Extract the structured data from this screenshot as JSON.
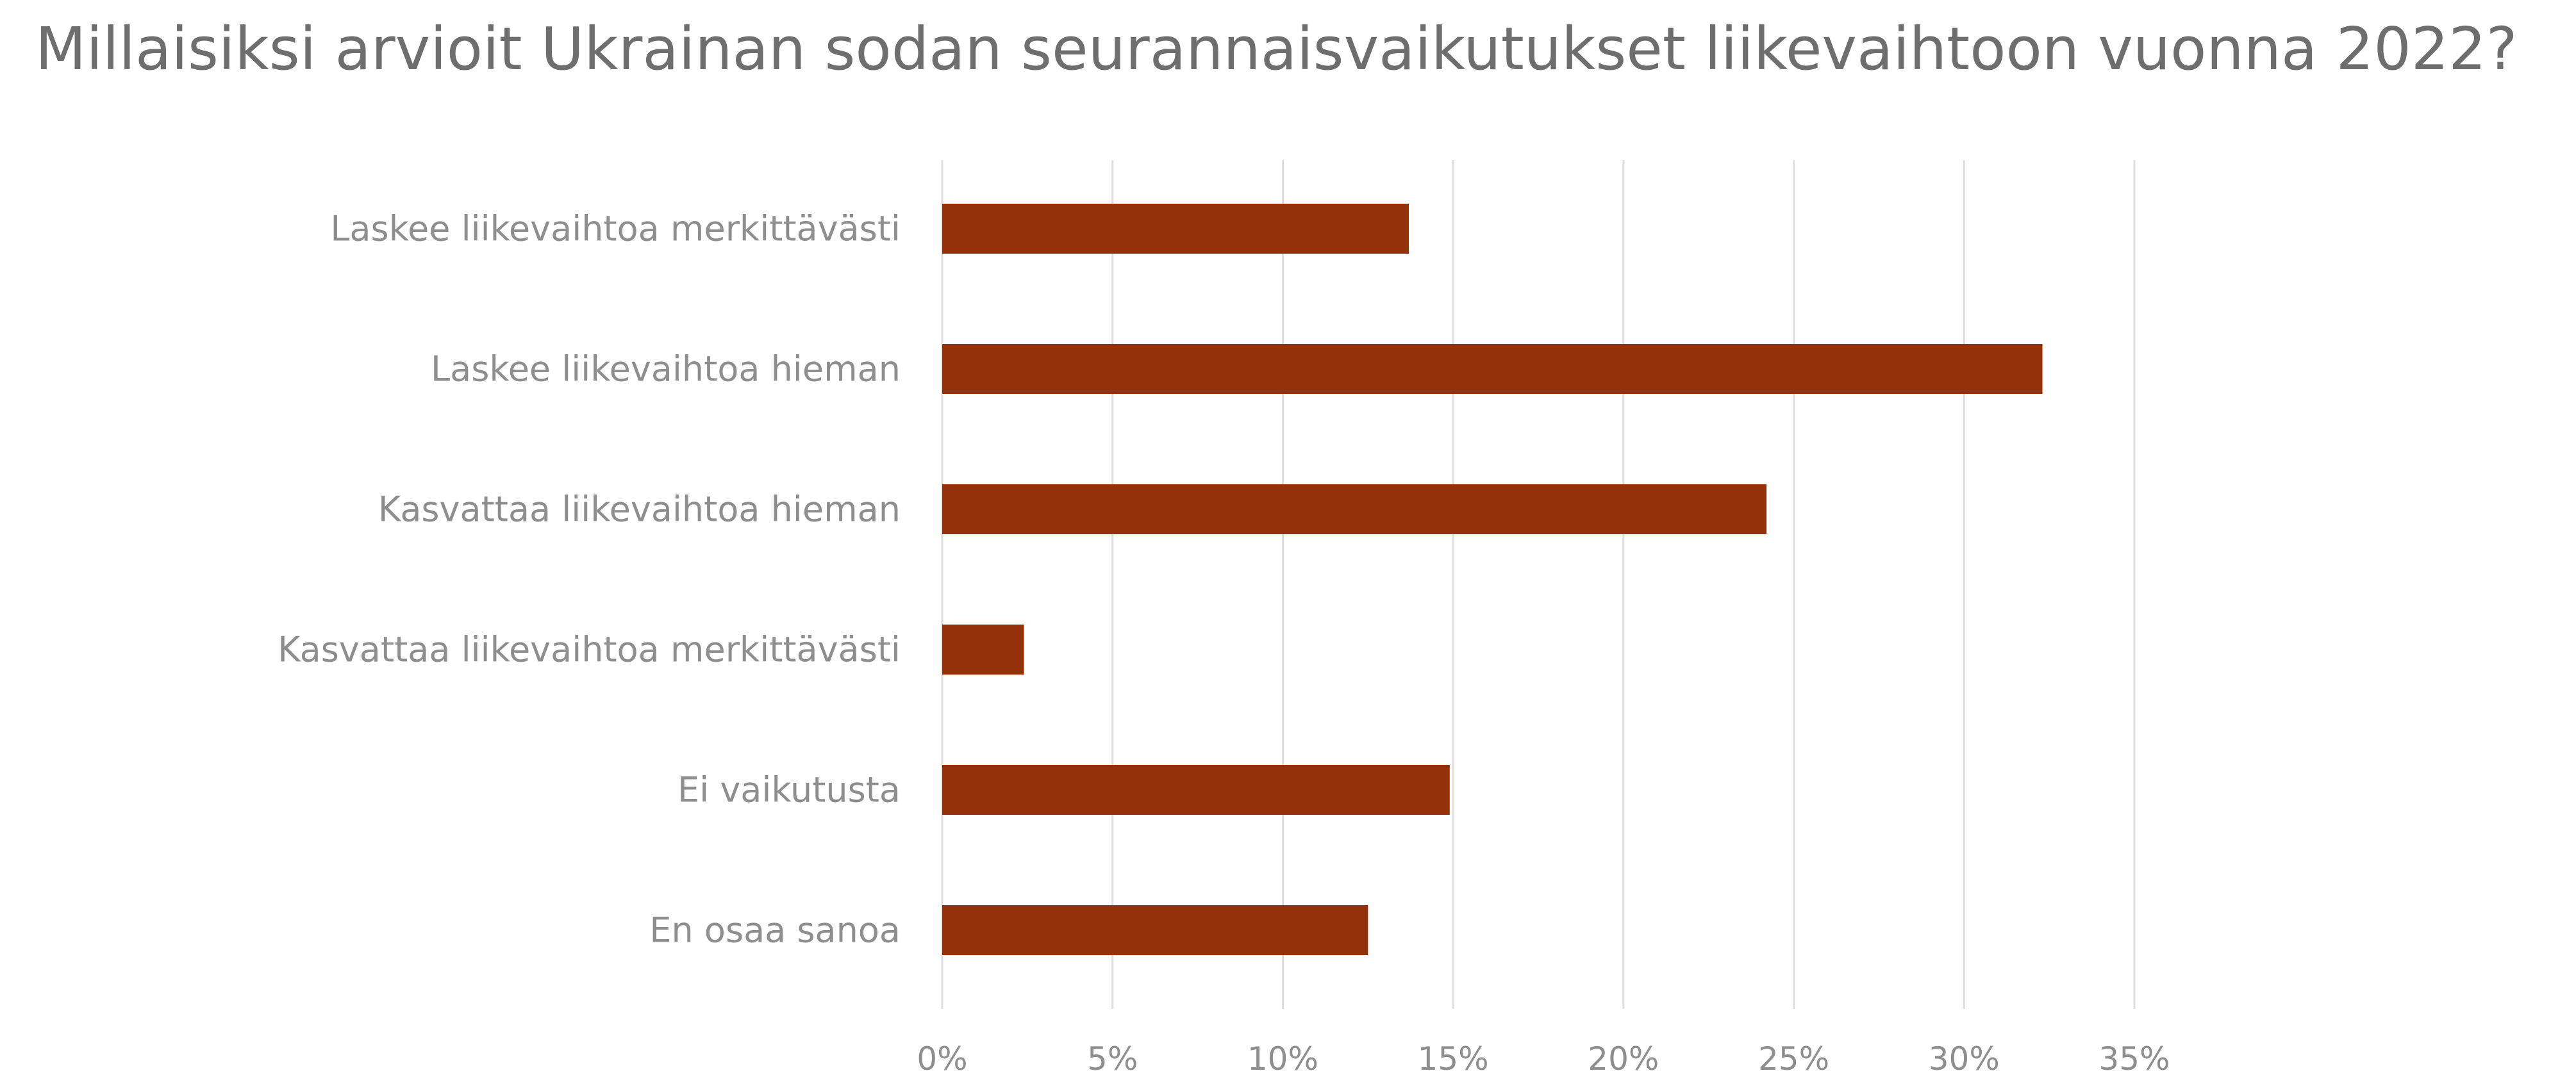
{
  "chart_data": {
    "type": "bar",
    "orientation": "horizontal",
    "title": "Millaisiksi arvioit Ukrainan sodan seurannaisvaikutukset liikevaihtoon vuonna 2022?",
    "categories": [
      "Laskee liikevaihtoa merkittävästi",
      "Laskee liikevaihtoa hieman",
      "Kasvattaa liikevaihtoa hieman",
      "Kasvattaa liikevaihtoa merkittävästi",
      "Ei vaikutusta",
      "En osaa sanoa"
    ],
    "values": [
      13.7,
      32.3,
      24.2,
      2.4,
      14.9,
      12.5
    ],
    "xlim": [
      0,
      35
    ],
    "x_ticks": [
      0,
      5,
      10,
      15,
      20,
      25,
      30,
      35
    ],
    "x_tick_labels": [
      "0%",
      "5%",
      "10%",
      "15%",
      "20%",
      "25%",
      "30%",
      "35%"
    ],
    "xlabel": "",
    "ylabel": "",
    "grid": "vertical",
    "legend": "none",
    "bar_color": "#93310b"
  }
}
